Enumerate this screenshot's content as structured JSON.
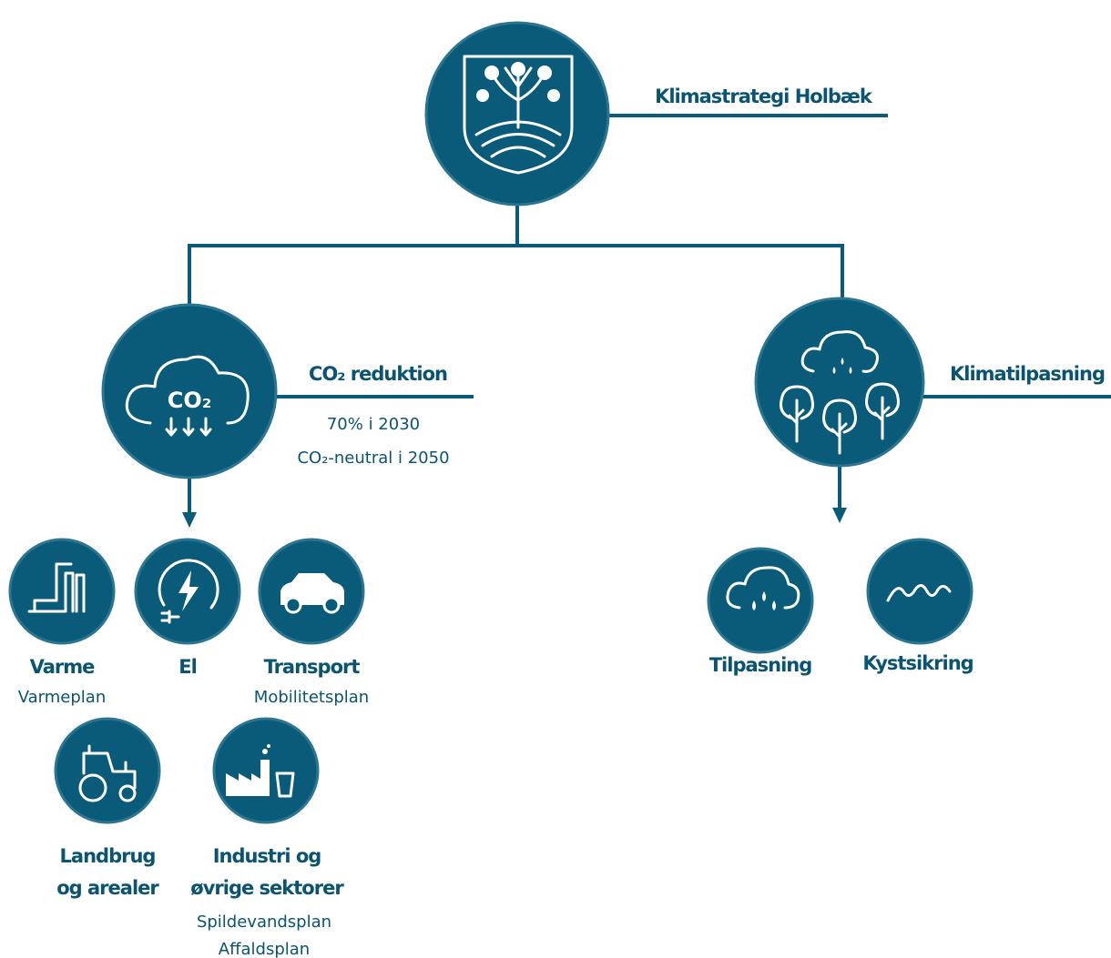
{
  "header": {
    "title": "Klimastrategi Holbæk"
  },
  "branches": [
    {
      "title": "CO₂ reduktion",
      "icon_label": "CO₂",
      "notes": [
        "70% i 2030",
        "CO₂-neutral i 2050"
      ],
      "items": [
        {
          "title": [
            "Varme"
          ],
          "plans": [
            "Varmeplan"
          ]
        },
        {
          "title": [
            "El"
          ]
        },
        {
          "title": [
            "Transport"
          ],
          "plans": [
            "Mobilitetsplan"
          ]
        },
        {
          "title": [
            "Landbrug",
            "og arealer"
          ]
        },
        {
          "title": [
            "Industri og",
            "øvrige sektorer"
          ],
          "plans": [
            "Spildevandsplan",
            "Affaldsplan"
          ]
        }
      ]
    },
    {
      "title": "Klimatilpasning",
      "items": [
        {
          "title": [
            "Tilpasning"
          ]
        },
        {
          "title": [
            "Kystsikring"
          ]
        }
      ]
    }
  ]
}
